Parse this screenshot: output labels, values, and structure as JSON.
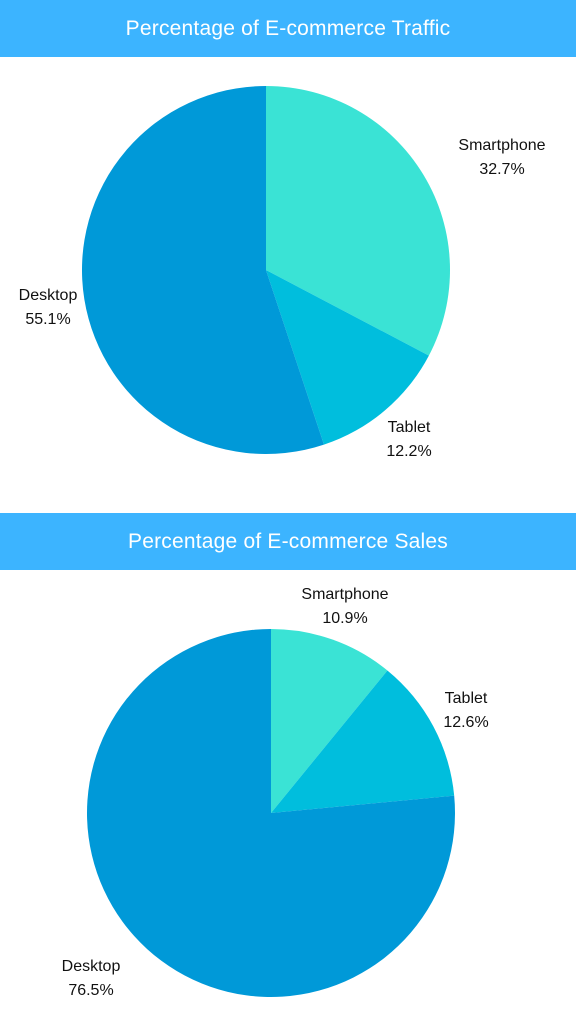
{
  "colors": {
    "banner": "#3cb4ff",
    "desktop": "#0099d8",
    "smartphone": "#3ae3d5",
    "tablet": "#00bedd"
  },
  "chart_data": [
    {
      "type": "pie",
      "title": "Percentage of E-commerce Traffic",
      "slices": [
        {
          "label": "Smartphone",
          "value": 32.7,
          "value_label": "32.7%",
          "color": "#3ae3d5"
        },
        {
          "label": "Tablet",
          "value": 12.2,
          "value_label": "12.2%",
          "color": "#00bedd"
        },
        {
          "label": "Desktop",
          "value": 55.1,
          "value_label": "55.1%",
          "color": "#0099d8"
        }
      ],
      "start": "12 o'clock",
      "direction": "clockwise",
      "legend": "none"
    },
    {
      "type": "pie",
      "title": "Percentage of E-commerce Sales",
      "slices": [
        {
          "label": "Smartphone",
          "value": 10.9,
          "value_label": "10.9%",
          "color": "#3ae3d5"
        },
        {
          "label": "Tablet",
          "value": 12.6,
          "value_label": "12.6%",
          "color": "#00bedd"
        },
        {
          "label": "Desktop",
          "value": 76.5,
          "value_label": "76.5%",
          "color": "#0099d8"
        }
      ],
      "start": "12 o'clock",
      "direction": "clockwise",
      "legend": "none"
    }
  ]
}
